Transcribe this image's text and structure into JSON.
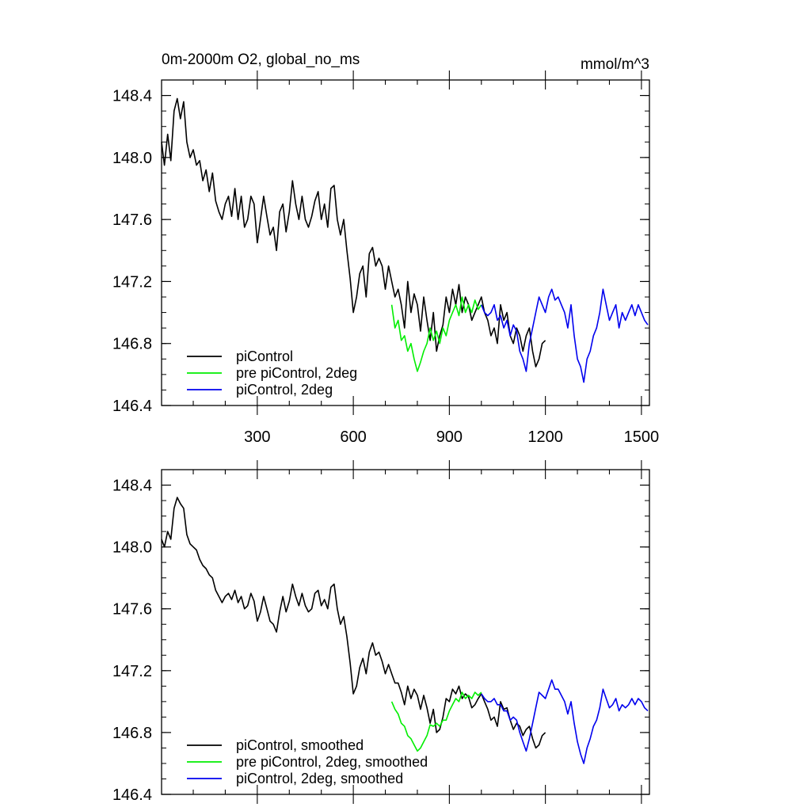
{
  "chart_data": [
    {
      "type": "line",
      "title": "0m-2000m O2, global_no_ms",
      "units": "mmol/m^3",
      "xlim": [
        1,
        1525
      ],
      "ylim": [
        146.4,
        148.5
      ],
      "yticks": [
        "148.4",
        "148.0",
        "147.6",
        "147.2",
        "146.8",
        "146.4"
      ],
      "xticks": [
        "300",
        "600",
        "900",
        "1200",
        "1500"
      ],
      "legend_position": "bottom-left",
      "series": [
        {
          "name": "piControl",
          "color": "#000000",
          "x": [
            1,
            10,
            20,
            30,
            40,
            50,
            60,
            70,
            80,
            90,
            100,
            110,
            120,
            130,
            140,
            150,
            160,
            170,
            180,
            190,
            200,
            210,
            220,
            230,
            240,
            250,
            260,
            270,
            280,
            290,
            300,
            310,
            320,
            330,
            340,
            350,
            360,
            370,
            380,
            390,
            400,
            410,
            420,
            430,
            440,
            450,
            460,
            470,
            480,
            490,
            500,
            510,
            520,
            530,
            540,
            550,
            560,
            570,
            580,
            590,
            600,
            610,
            620,
            630,
            640,
            650,
            660,
            670,
            680,
            690,
            700,
            710,
            720,
            730,
            740,
            750,
            760,
            770,
            780,
            790,
            800,
            810,
            820,
            830,
            840,
            850,
            860,
            870,
            880,
            890,
            900,
            910,
            920,
            930,
            940,
            950,
            960,
            970,
            980,
            990,
            1000,
            1010,
            1020,
            1030,
            1040,
            1050,
            1060,
            1070,
            1080,
            1090,
            1100,
            1110,
            1120,
            1130,
            1140,
            1150,
            1160,
            1170,
            1180,
            1190,
            1200
          ],
          "values": [
            148.1,
            147.95,
            148.15,
            147.98,
            148.3,
            148.38,
            148.25,
            148.36,
            148.1,
            148.0,
            148.05,
            147.95,
            147.98,
            147.85,
            147.92,
            147.78,
            147.9,
            147.72,
            147.65,
            147.6,
            147.7,
            147.75,
            147.62,
            147.8,
            147.6,
            147.75,
            147.55,
            147.6,
            147.75,
            147.7,
            147.45,
            147.6,
            147.75,
            147.62,
            147.5,
            147.55,
            147.4,
            147.65,
            147.7,
            147.52,
            147.65,
            147.85,
            147.7,
            147.6,
            147.75,
            147.6,
            147.55,
            147.62,
            147.72,
            147.78,
            147.6,
            147.7,
            147.55,
            147.8,
            147.82,
            147.6,
            147.5,
            147.6,
            147.4,
            147.22,
            147.0,
            147.1,
            147.25,
            147.3,
            147.1,
            147.38,
            147.42,
            147.3,
            147.35,
            147.3,
            147.15,
            147.3,
            147.2,
            147.1,
            147.15,
            147.05,
            146.9,
            147.2,
            147.0,
            147.12,
            147.05,
            146.88,
            147.1,
            146.95,
            146.82,
            147.0,
            146.75,
            146.85,
            146.92,
            147.1,
            147.0,
            147.15,
            147.05,
            147.18,
            147.0,
            147.1,
            147.05,
            146.95,
            147.0,
            147.05,
            147.1,
            147.0,
            146.95,
            146.85,
            146.9,
            146.8,
            147.05,
            146.95,
            147.0,
            146.85,
            146.8,
            146.9,
            146.85,
            146.75,
            146.85,
            146.9,
            146.75,
            146.65,
            146.7,
            146.8,
            146.82
          ]
        },
        {
          "name": "pre piControl, 2deg",
          "color": "#00ee00",
          "x": [
            720,
            730,
            740,
            750,
            760,
            770,
            780,
            790,
            800,
            810,
            820,
            830,
            840,
            850,
            860,
            870,
            880,
            890,
            900,
            910,
            920,
            930,
            940,
            950,
            960,
            970,
            980,
            990,
            1000
          ],
          "values": [
            147.05,
            146.9,
            146.95,
            146.82,
            146.85,
            146.75,
            146.8,
            146.7,
            146.62,
            146.68,
            146.75,
            146.8,
            146.9,
            146.82,
            146.88,
            146.8,
            146.9,
            146.85,
            146.95,
            147.0,
            147.05,
            146.98,
            147.1,
            147.0,
            147.05,
            147.0,
            147.08,
            147.02,
            147.05
          ]
        },
        {
          "name": "piControl, 2deg",
          "color": "#0000ee",
          "x": [
            1000,
            1010,
            1020,
            1030,
            1040,
            1050,
            1060,
            1070,
            1080,
            1090,
            1100,
            1110,
            1120,
            1130,
            1140,
            1150,
            1160,
            1170,
            1180,
            1190,
            1200,
            1210,
            1220,
            1230,
            1240,
            1250,
            1260,
            1270,
            1280,
            1290,
            1300,
            1310,
            1320,
            1330,
            1340,
            1350,
            1360,
            1370,
            1380,
            1390,
            1400,
            1410,
            1420,
            1430,
            1440,
            1450,
            1460,
            1470,
            1480,
            1490,
            1500,
            1510,
            1520
          ],
          "values": [
            147.05,
            147.0,
            146.98,
            147.0,
            147.05,
            146.95,
            146.98,
            146.9,
            146.95,
            146.85,
            146.92,
            146.88,
            146.75,
            146.7,
            146.62,
            146.8,
            146.9,
            147.0,
            147.1,
            147.05,
            147.0,
            147.1,
            147.15,
            147.08,
            147.1,
            147.05,
            147.0,
            146.9,
            147.05,
            146.85,
            146.7,
            146.65,
            146.55,
            146.7,
            146.75,
            146.85,
            146.9,
            147.0,
            147.15,
            147.05,
            146.95,
            147.0,
            147.05,
            146.9,
            147.0,
            146.95,
            147.0,
            147.05,
            146.98,
            147.05,
            147.0,
            146.95,
            146.92
          ]
        }
      ]
    },
    {
      "type": "line",
      "xlim": [
        1,
        1525
      ],
      "ylim": [
        146.4,
        148.5
      ],
      "yticks": [
        "148.4",
        "148.0",
        "147.6",
        "147.2",
        "146.8",
        "146.4"
      ],
      "legend_position": "bottom-left",
      "series": [
        {
          "name": "piControl, smoothed",
          "color": "#000000",
          "x": [
            1,
            10,
            20,
            30,
            40,
            50,
            60,
            70,
            80,
            90,
            100,
            110,
            120,
            130,
            140,
            150,
            160,
            170,
            180,
            190,
            200,
            210,
            220,
            230,
            240,
            250,
            260,
            270,
            280,
            290,
            300,
            310,
            320,
            330,
            340,
            350,
            360,
            370,
            380,
            390,
            400,
            410,
            420,
            430,
            440,
            450,
            460,
            470,
            480,
            490,
            500,
            510,
            520,
            530,
            540,
            550,
            560,
            570,
            580,
            590,
            600,
            610,
            620,
            630,
            640,
            650,
            660,
            670,
            680,
            690,
            700,
            710,
            720,
            730,
            740,
            750,
            760,
            770,
            780,
            790,
            800,
            810,
            820,
            830,
            840,
            850,
            860,
            870,
            880,
            890,
            900,
            910,
            920,
            930,
            940,
            950,
            960,
            970,
            980,
            990,
            1000,
            1010,
            1020,
            1030,
            1040,
            1050,
            1060,
            1070,
            1080,
            1090,
            1100,
            1110,
            1120,
            1130,
            1140,
            1150,
            1160,
            1170,
            1180,
            1190,
            1200
          ],
          "values": [
            148.05,
            148.0,
            148.1,
            148.05,
            148.25,
            148.32,
            148.28,
            148.25,
            148.08,
            148.02,
            148.0,
            147.98,
            147.92,
            147.88,
            147.86,
            147.82,
            147.8,
            147.72,
            147.68,
            147.64,
            147.68,
            147.7,
            147.66,
            147.72,
            147.64,
            147.68,
            147.6,
            147.62,
            147.7,
            147.65,
            147.52,
            147.58,
            147.68,
            147.6,
            147.52,
            147.5,
            147.45,
            147.58,
            147.68,
            147.58,
            147.65,
            147.76,
            147.68,
            147.62,
            147.7,
            147.62,
            147.58,
            147.6,
            147.7,
            147.72,
            147.62,
            147.66,
            147.6,
            147.74,
            147.76,
            147.6,
            147.5,
            147.55,
            147.42,
            147.25,
            147.05,
            147.1,
            147.22,
            147.28,
            147.18,
            147.32,
            147.38,
            147.3,
            147.32,
            147.26,
            147.18,
            147.24,
            147.18,
            147.12,
            147.12,
            147.06,
            146.98,
            147.1,
            147.02,
            147.08,
            147.04,
            146.95,
            147.04,
            146.96,
            146.86,
            146.95,
            146.8,
            146.82,
            146.9,
            147.02,
            147.0,
            147.08,
            147.05,
            147.1,
            147.02,
            147.05,
            147.03,
            146.96,
            146.98,
            147.02,
            147.05,
            147.0,
            146.95,
            146.88,
            146.9,
            146.84,
            147.0,
            146.95,
            146.96,
            146.88,
            146.82,
            146.86,
            146.84,
            146.78,
            146.82,
            146.84,
            146.76,
            146.7,
            146.72,
            146.78,
            146.8
          ]
        },
        {
          "name": "pre piControl, 2deg, smoothed",
          "color": "#00ee00",
          "x": [
            720,
            730,
            740,
            750,
            760,
            770,
            780,
            790,
            800,
            810,
            820,
            830,
            840,
            850,
            860,
            870,
            880,
            890,
            900,
            910,
            920,
            930,
            940,
            950,
            960,
            970,
            980,
            990,
            1000
          ],
          "values": [
            147.0,
            146.95,
            146.92,
            146.86,
            146.84,
            146.78,
            146.76,
            146.72,
            146.68,
            146.7,
            146.74,
            146.78,
            146.85,
            146.84,
            146.86,
            146.84,
            146.88,
            146.88,
            146.94,
            146.98,
            147.02,
            147.0,
            147.06,
            147.02,
            147.04,
            147.02,
            147.06,
            147.04,
            147.06
          ]
        },
        {
          "name": "piControl, 2deg, smoothed",
          "color": "#0000ee",
          "x": [
            1000,
            1010,
            1020,
            1030,
            1040,
            1050,
            1060,
            1070,
            1080,
            1090,
            1100,
            1110,
            1120,
            1130,
            1140,
            1150,
            1160,
            1170,
            1180,
            1190,
            1200,
            1210,
            1220,
            1230,
            1240,
            1250,
            1260,
            1270,
            1280,
            1290,
            1300,
            1310,
            1320,
            1330,
            1340,
            1350,
            1360,
            1370,
            1380,
            1390,
            1400,
            1410,
            1420,
            1430,
            1440,
            1450,
            1460,
            1470,
            1480,
            1490,
            1500,
            1510,
            1520
          ],
          "values": [
            147.05,
            147.02,
            147.0,
            147.0,
            147.02,
            146.98,
            146.98,
            146.94,
            146.94,
            146.88,
            146.9,
            146.88,
            146.8,
            146.74,
            146.68,
            146.76,
            146.86,
            146.96,
            147.06,
            147.04,
            147.02,
            147.08,
            147.14,
            147.08,
            147.08,
            147.04,
            147.0,
            146.92,
            147.0,
            146.86,
            146.74,
            146.66,
            146.6,
            146.7,
            146.76,
            146.84,
            146.88,
            146.96,
            147.08,
            147.02,
            146.96,
            146.98,
            147.02,
            146.94,
            146.98,
            146.96,
            146.98,
            147.02,
            146.98,
            147.02,
            147.0,
            146.96,
            146.94
          ]
        }
      ]
    }
  ]
}
